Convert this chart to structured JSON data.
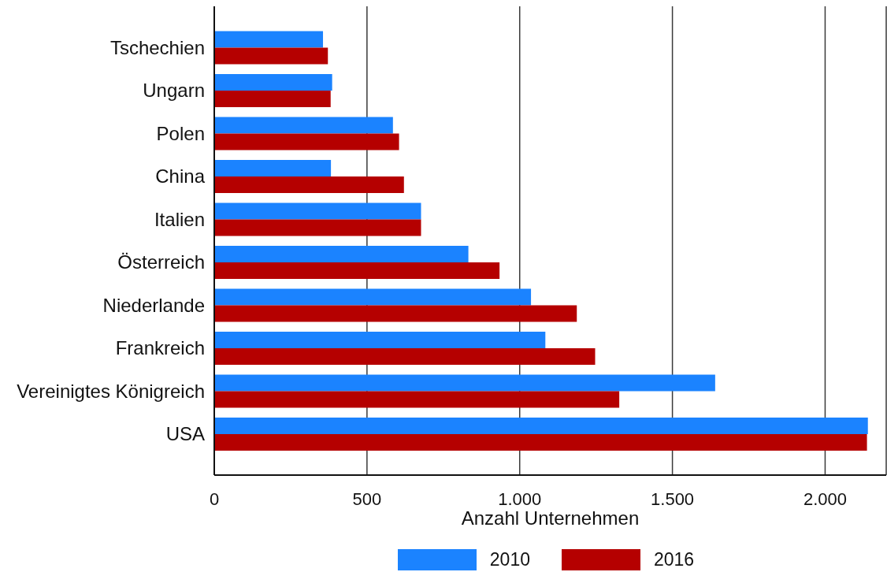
{
  "chart_data": {
    "type": "bar",
    "orientation": "horizontal",
    "xlabel": "Anzahl Unternehmen",
    "categories": [
      "Tschechien",
      "Ungarn",
      "Polen",
      "China",
      "Italien",
      "Österreich",
      "Niederlande",
      "Frankreich",
      "Vereinigtes Königreich",
      "USA"
    ],
    "series": [
      {
        "name": "2010",
        "color": "#1b83ff",
        "values": [
          356,
          386,
          585,
          382,
          677,
          832,
          1037,
          1084,
          1640,
          2140
        ]
      },
      {
        "name": "2016",
        "color": "#b50000",
        "values": [
          372,
          381,
          605,
          621,
          677,
          934,
          1187,
          1247,
          1326,
          2137
        ]
      }
    ],
    "xlim": [
      0,
      2200
    ],
    "xticks": [
      0,
      500,
      {
        "value": 1000,
        "label": "1.000"
      },
      {
        "value": 1500,
        "label": "1.500"
      },
      {
        "value": 2000,
        "label": "2.000"
      }
    ],
    "grid": "x",
    "legend": "bottom"
  }
}
